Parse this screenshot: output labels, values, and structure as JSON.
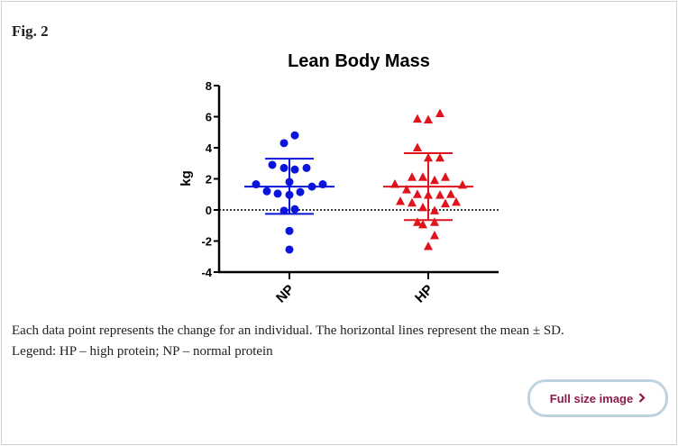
{
  "figure_label": "Fig. 2",
  "caption_line1": "Each data point represents the change for an individual. The horizontal lines represent the mean ± SD.",
  "caption_line2": "Legend: HP – high protein; NP – normal protein",
  "full_size_button": "Full size image",
  "chart_data": {
    "type": "scatter",
    "title": "Lean Body Mass",
    "ylabel": "kg",
    "xlabel": "",
    "ylim": [
      -4,
      8
    ],
    "yticks": [
      "8",
      "6",
      "4",
      "2",
      "0",
      "-2",
      "-4"
    ],
    "reference_line": 0,
    "categories": [
      "NP",
      "HP"
    ],
    "series": [
      {
        "name": "NP",
        "color": "#0a14dc",
        "marker": "circle",
        "mean": 1.5,
        "sd_upper": 3.3,
        "sd_lower": -0.25,
        "values": [
          4.8,
          4.3,
          2.9,
          2.7,
          2.6,
          2.7,
          1.8,
          1.65,
          1.65,
          1.5,
          1.2,
          1.15,
          1.05,
          0.97,
          -0.05,
          0.05,
          -1.35,
          -2.55
        ]
      },
      {
        "name": "HP",
        "color": "#e0121c",
        "marker": "triangle",
        "mean": 1.5,
        "sd_upper": 3.65,
        "sd_lower": -0.65,
        "values": [
          5.85,
          5.8,
          6.2,
          4.0,
          3.35,
          3.35,
          2.1,
          2.1,
          1.9,
          2.1,
          1.65,
          1.6,
          1.3,
          1.0,
          0.95,
          0.95,
          1.0,
          0.55,
          0.45,
          0.4,
          0.5,
          0.15,
          -0.05,
          -0.8,
          -0.95,
          -0.8,
          -1.65,
          -2.35
        ]
      }
    ]
  }
}
